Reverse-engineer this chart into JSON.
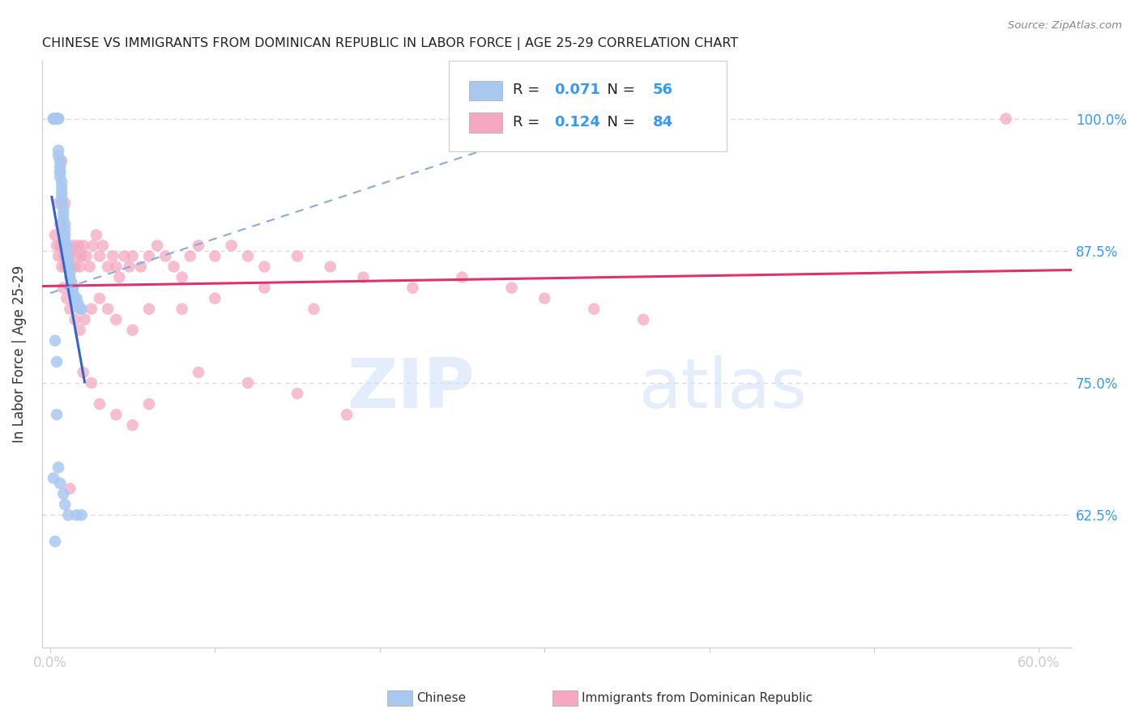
{
  "title": "CHINESE VS IMMIGRANTS FROM DOMINICAN REPUBLIC IN LABOR FORCE | AGE 25-29 CORRELATION CHART",
  "source": "Source: ZipAtlas.com",
  "ylabel": "In Labor Force | Age 25-29",
  "xlim": [
    -0.005,
    0.62
  ],
  "ylim": [
    0.5,
    1.055
  ],
  "yticks": [
    0.625,
    0.75,
    0.875,
    1.0
  ],
  "yticklabels": [
    "62.5%",
    "75.0%",
    "87.5%",
    "100.0%"
  ],
  "background_color": "#ffffff",
  "grid_color": "#d8d8d8",
  "blue_scatter_color": "#a8c8f0",
  "pink_scatter_color": "#f5a8c0",
  "blue_line_color": "#3366cc",
  "pink_line_color": "#e03070",
  "dashed_line_color": "#88aadd",
  "tick_label_color": "#3399ff",
  "watermark": "ZIPatlas",
  "chinese_x": [
    0.002,
    0.002,
    0.003,
    0.003,
    0.003,
    0.004,
    0.004,
    0.005,
    0.005,
    0.005,
    0.005,
    0.006,
    0.006,
    0.006,
    0.006,
    0.006,
    0.007,
    0.007,
    0.007,
    0.007,
    0.007,
    0.008,
    0.008,
    0.008,
    0.009,
    0.009,
    0.009,
    0.009,
    0.01,
    0.01,
    0.01,
    0.011,
    0.011,
    0.012,
    0.012,
    0.013,
    0.013,
    0.014,
    0.014,
    0.015,
    0.016,
    0.017,
    0.018,
    0.019,
    0.003,
    0.004,
    0.004,
    0.005,
    0.006,
    0.008,
    0.009,
    0.011,
    0.016,
    0.019,
    0.002,
    0.003
  ],
  "chinese_y": [
    1.0,
    1.0,
    1.0,
    1.0,
    1.0,
    1.0,
    1.0,
    1.0,
    1.0,
    0.97,
    0.965,
    0.96,
    0.95,
    0.955,
    0.95,
    0.945,
    0.94,
    0.935,
    0.93,
    0.925,
    0.92,
    0.915,
    0.91,
    0.905,
    0.9,
    0.895,
    0.89,
    0.885,
    0.88,
    0.875,
    0.87,
    0.865,
    0.86,
    0.855,
    0.85,
    0.845,
    0.84,
    0.84,
    0.835,
    0.83,
    0.83,
    0.825,
    0.82,
    0.82,
    0.79,
    0.77,
    0.72,
    0.67,
    0.655,
    0.645,
    0.635,
    0.625,
    0.625,
    0.625,
    0.66,
    0.6
  ],
  "dominican_x": [
    0.003,
    0.004,
    0.005,
    0.006,
    0.007,
    0.007,
    0.008,
    0.009,
    0.01,
    0.011,
    0.012,
    0.013,
    0.014,
    0.015,
    0.016,
    0.017,
    0.018,
    0.019,
    0.02,
    0.022,
    0.024,
    0.026,
    0.028,
    0.03,
    0.032,
    0.035,
    0.038,
    0.04,
    0.042,
    0.045,
    0.048,
    0.05,
    0.055,
    0.06,
    0.065,
    0.07,
    0.075,
    0.08,
    0.085,
    0.09,
    0.1,
    0.11,
    0.12,
    0.13,
    0.15,
    0.17,
    0.19,
    0.22,
    0.25,
    0.28,
    0.3,
    0.33,
    0.36,
    0.005,
    0.006,
    0.008,
    0.01,
    0.012,
    0.015,
    0.018,
    0.021,
    0.025,
    0.03,
    0.035,
    0.04,
    0.05,
    0.06,
    0.08,
    0.1,
    0.13,
    0.16,
    0.02,
    0.025,
    0.03,
    0.04,
    0.05,
    0.06,
    0.09,
    0.12,
    0.15,
    0.18,
    0.58,
    0.007,
    0.009,
    0.012
  ],
  "dominican_y": [
    0.89,
    0.88,
    0.87,
    0.88,
    0.88,
    0.86,
    0.87,
    0.86,
    0.88,
    0.87,
    0.86,
    0.875,
    0.88,
    0.86,
    0.87,
    0.88,
    0.86,
    0.87,
    0.88,
    0.87,
    0.86,
    0.88,
    0.89,
    0.87,
    0.88,
    0.86,
    0.87,
    0.86,
    0.85,
    0.87,
    0.86,
    0.87,
    0.86,
    0.87,
    0.88,
    0.87,
    0.86,
    0.85,
    0.87,
    0.88,
    0.87,
    0.88,
    0.87,
    0.86,
    0.87,
    0.86,
    0.85,
    0.84,
    0.85,
    0.84,
    0.83,
    0.82,
    0.81,
    0.92,
    0.9,
    0.84,
    0.83,
    0.82,
    0.81,
    0.8,
    0.81,
    0.82,
    0.83,
    0.82,
    0.81,
    0.8,
    0.82,
    0.82,
    0.83,
    0.84,
    0.82,
    0.76,
    0.75,
    0.73,
    0.72,
    0.71,
    0.73,
    0.76,
    0.75,
    0.74,
    0.72,
    1.0,
    0.96,
    0.92,
    0.65
  ]
}
